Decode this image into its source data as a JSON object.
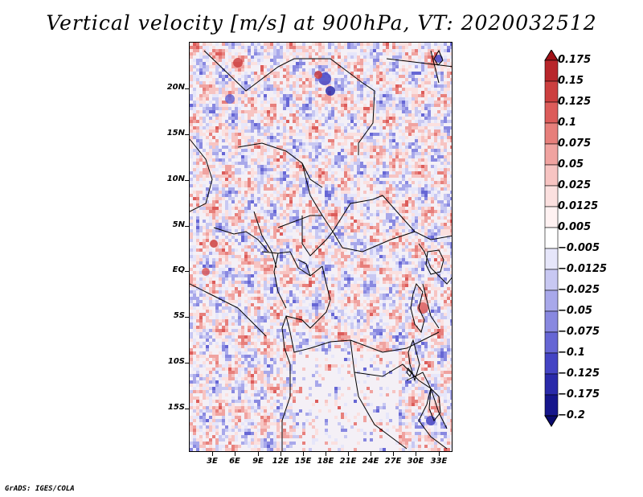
{
  "title": "Vertical velocity [m/s] at 900hPa, VT: 2020032512",
  "credit": "GrADS: IGES/COLA",
  "map": {
    "lat_ticks": [
      "20N",
      "15N",
      "10N",
      "5N",
      "EQ",
      "5S",
      "10S",
      "15S"
    ],
    "lon_ticks": [
      "3E",
      "6E",
      "9E",
      "12E",
      "15E",
      "18E",
      "21E",
      "24E",
      "27E",
      "30E",
      "33E"
    ]
  },
  "legend": {
    "labels": [
      "0.175",
      "0.15",
      "0.125",
      "0.1",
      "0.075",
      "0.05",
      "0.025",
      "0.0125",
      "0.005",
      "−0.005",
      "−0.0125",
      "−0.025",
      "−0.05",
      "−0.075",
      "−0.1",
      "−0.125",
      "−0.175",
      "−0.2"
    ],
    "colors": [
      "#a01218",
      "#b8262b",
      "#cc3f3f",
      "#dc5c5a",
      "#e77f7b",
      "#f0a3a0",
      "#f7c4c2",
      "#fbe0df",
      "#fff2f2",
      "#ffffff",
      "#e6e6fa",
      "#c8c8f2",
      "#a8a8ea",
      "#8888e0",
      "#6666d4",
      "#4444c4",
      "#2a2aaa",
      "#16168c",
      "#0a0a6e"
    ]
  }
}
